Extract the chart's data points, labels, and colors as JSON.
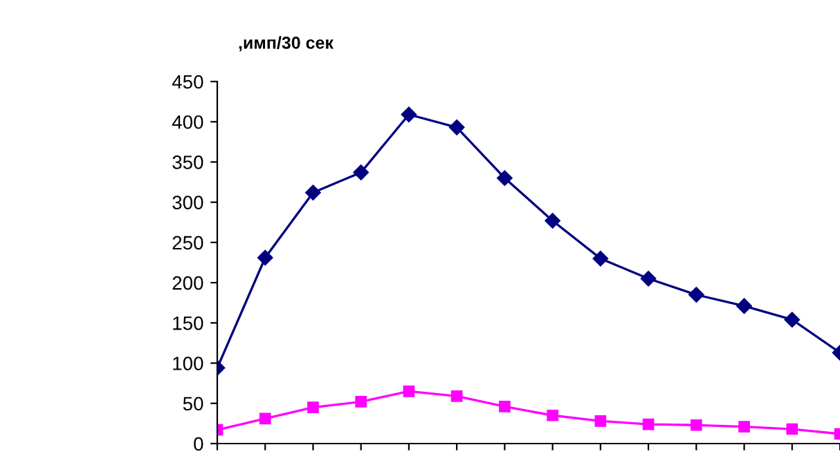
{
  "chart_data": {
    "type": "line",
    "ylabel": ",имп/30 сек",
    "categories": [
      null,
      null,
      null,
      null,
      null,
      null,
      null,
      null,
      null,
      null,
      null,
      null,
      null,
      null
    ],
    "series": [
      {
        "color": "#000080",
        "marker": "diamond",
        "values": [
          94,
          231,
          312,
          337,
          409,
          393,
          330,
          277,
          230,
          205,
          185,
          171,
          154,
          113
        ]
      },
      {
        "color": "#ff00ff",
        "marker": "square",
        "values": [
          17,
          31,
          45,
          52,
          65,
          59,
          46,
          35,
          28,
          24,
          23,
          21,
          18,
          12
        ]
      }
    ],
    "ylim": [
      0,
      450
    ],
    "yticks": [
      0,
      50,
      100,
      150,
      200,
      250,
      300,
      350,
      400,
      450
    ],
    "tick_labels": "y",
    "grid": false,
    "legend": false
  }
}
